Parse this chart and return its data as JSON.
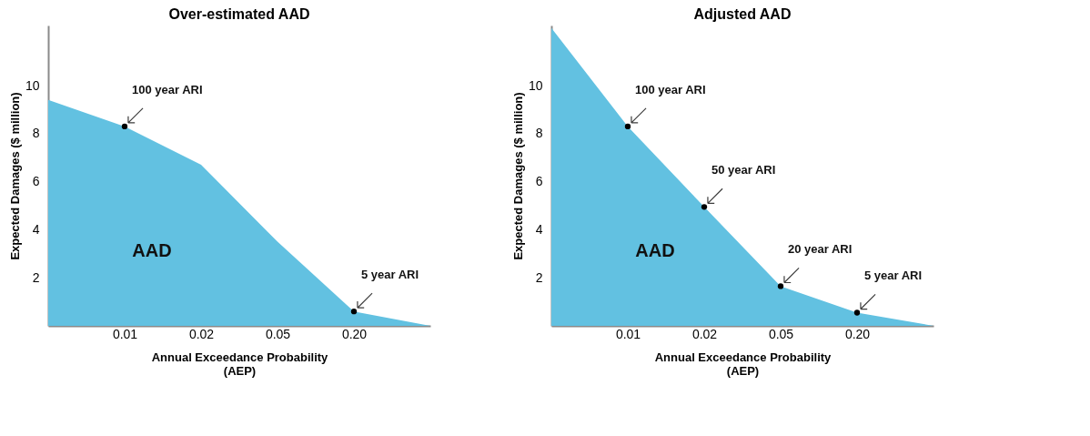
{
  "chart_data": [
    {
      "type": "area",
      "title": "Over-estimated AAD",
      "xlabel": "Annual Exceedance Probability\n(AEP)",
      "ylabel": "Expected Damages ($ million)",
      "categories": [
        null,
        "0.01",
        "0.02",
        "0.05",
        "0.20",
        null
      ],
      "series": [
        {
          "type": "area",
          "color": "#62c1e1",
          "values": [
            9.4,
            8.3,
            6.7,
            3.5,
            0.6,
            0
          ]
        },
        {
          "type": "scatter",
          "color": "#000000",
          "x": [
            "0.01",
            "0.20"
          ],
          "values": [
            8.3,
            0.6
          ]
        }
      ],
      "ylim": [
        0,
        12.5
      ],
      "yticks": [
        2,
        4,
        6,
        8,
        10
      ],
      "grid": false,
      "annotations": [
        {
          "text": "100 year ARI",
          "x": "0.01",
          "y": 8.3
        },
        {
          "text": "5 year ARI",
          "x": "0.20",
          "y": 0.6
        },
        "AAD"
      ]
    },
    {
      "type": "area",
      "title": "Adjusted AAD",
      "xlabel": "Annual Exceedance Probability\n(AEP)",
      "ylabel": "Expected Damages ($ million)",
      "categories": [
        null,
        "0.01",
        "0.02",
        "0.05",
        "0.20",
        null
      ],
      "series": [
        {
          "type": "area",
          "color": "#62c1e1",
          "values": [
            12.4,
            8.3,
            4.95,
            1.65,
            0.55,
            0
          ]
        },
        {
          "type": "scatter",
          "color": "#000000",
          "x": [
            "0.01",
            "0.02",
            "0.05",
            "0.20"
          ],
          "values": [
            8.3,
            4.95,
            1.65,
            0.55
          ]
        }
      ],
      "ylim": [
        0,
        12.5
      ],
      "yticks": [
        2,
        4,
        6,
        8,
        10
      ],
      "grid": false,
      "annotations": [
        {
          "text": "100 year ARI",
          "x": "0.01",
          "y": 8.3
        },
        {
          "text": "50 year ARI",
          "x": "0.02",
          "y": 4.95
        },
        {
          "text": "20 year ARI",
          "x": "0.05",
          "y": 1.65
        },
        {
          "text": "5 year ARI",
          "x": "0.20",
          "y": 0.55
        },
        "AAD"
      ]
    }
  ]
}
